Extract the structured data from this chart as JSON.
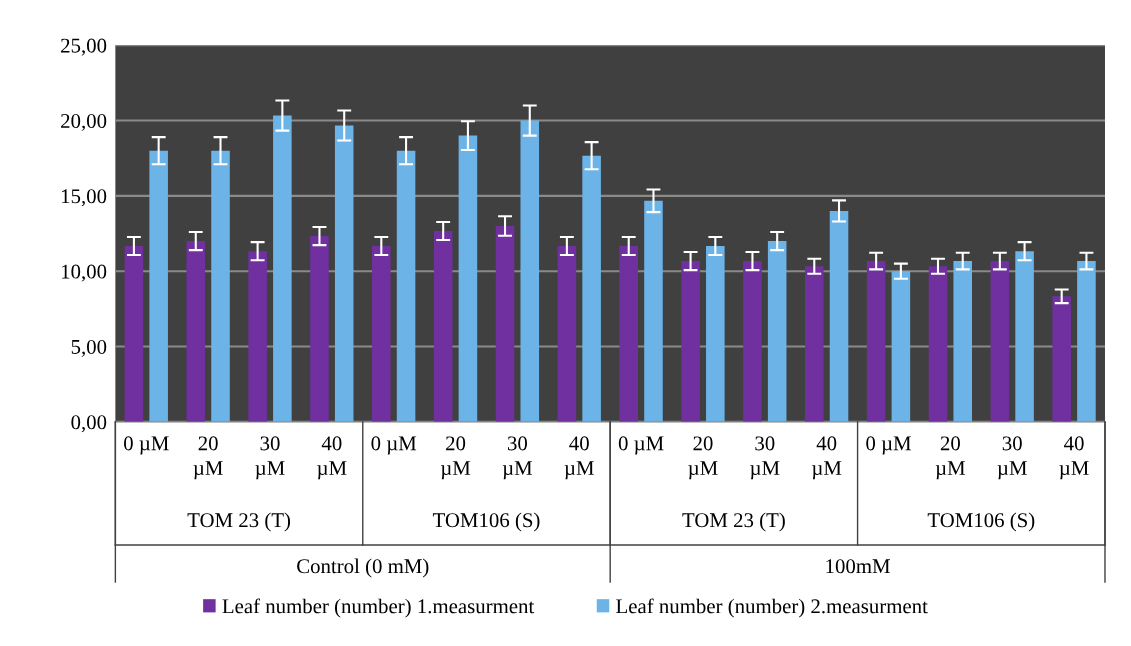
{
  "chart_data": {
    "type": "bar",
    "categories": [
      "0 µM",
      "20 µM",
      "30 µM",
      "40 µM",
      "0 µM",
      "20 µM",
      "30 µM",
      "40 µM",
      "0 µM",
      "20 µM",
      "30 µM",
      "40 µM",
      "0 µM",
      "20 µM",
      "30 µM",
      "40 µM"
    ],
    "series": [
      {
        "name": "Leaf number (number) 1.measurment",
        "color": "#7030a0",
        "values": [
          11.67,
          12.0,
          11.33,
          12.33,
          11.67,
          12.67,
          13.0,
          11.67,
          11.67,
          10.67,
          10.67,
          10.33,
          10.67,
          10.33,
          10.67,
          8.33
        ],
        "errors": [
          0.6,
          0.6,
          0.6,
          0.6,
          0.6,
          0.6,
          0.65,
          0.6,
          0.6,
          0.6,
          0.6,
          0.5,
          0.55,
          0.5,
          0.55,
          0.45
        ]
      },
      {
        "name": "Leaf number (number) 2.measurment",
        "color": "#6cb4e8",
        "values": [
          18.0,
          18.0,
          20.33,
          19.67,
          18.0,
          19.0,
          20.0,
          17.67,
          14.67,
          11.67,
          12.0,
          14.0,
          10.0,
          10.67,
          11.33,
          10.67
        ],
        "errors": [
          0.9,
          0.9,
          1.0,
          1.0,
          0.9,
          0.95,
          1.0,
          0.9,
          0.75,
          0.6,
          0.6,
          0.7,
          0.5,
          0.55,
          0.6,
          0.55
        ]
      }
    ],
    "ylim": [
      0,
      25
    ],
    "yticks": [
      {
        "value": 0,
        "label": "0,00"
      },
      {
        "value": 5,
        "label": "5,00"
      },
      {
        "value": 10,
        "label": "10,00"
      },
      {
        "value": 15,
        "label": "15,00"
      },
      {
        "value": 20,
        "label": "20,00"
      },
      {
        "value": 25,
        "label": "25,00"
      }
    ],
    "grid": "y",
    "legend": "bottom",
    "annotations": [
      "TOM 23 (T)",
      "TOM106 (S)",
      "TOM 23 (T)",
      "TOM106 (S)",
      "Control (0 mM)",
      "100mM"
    ]
  }
}
